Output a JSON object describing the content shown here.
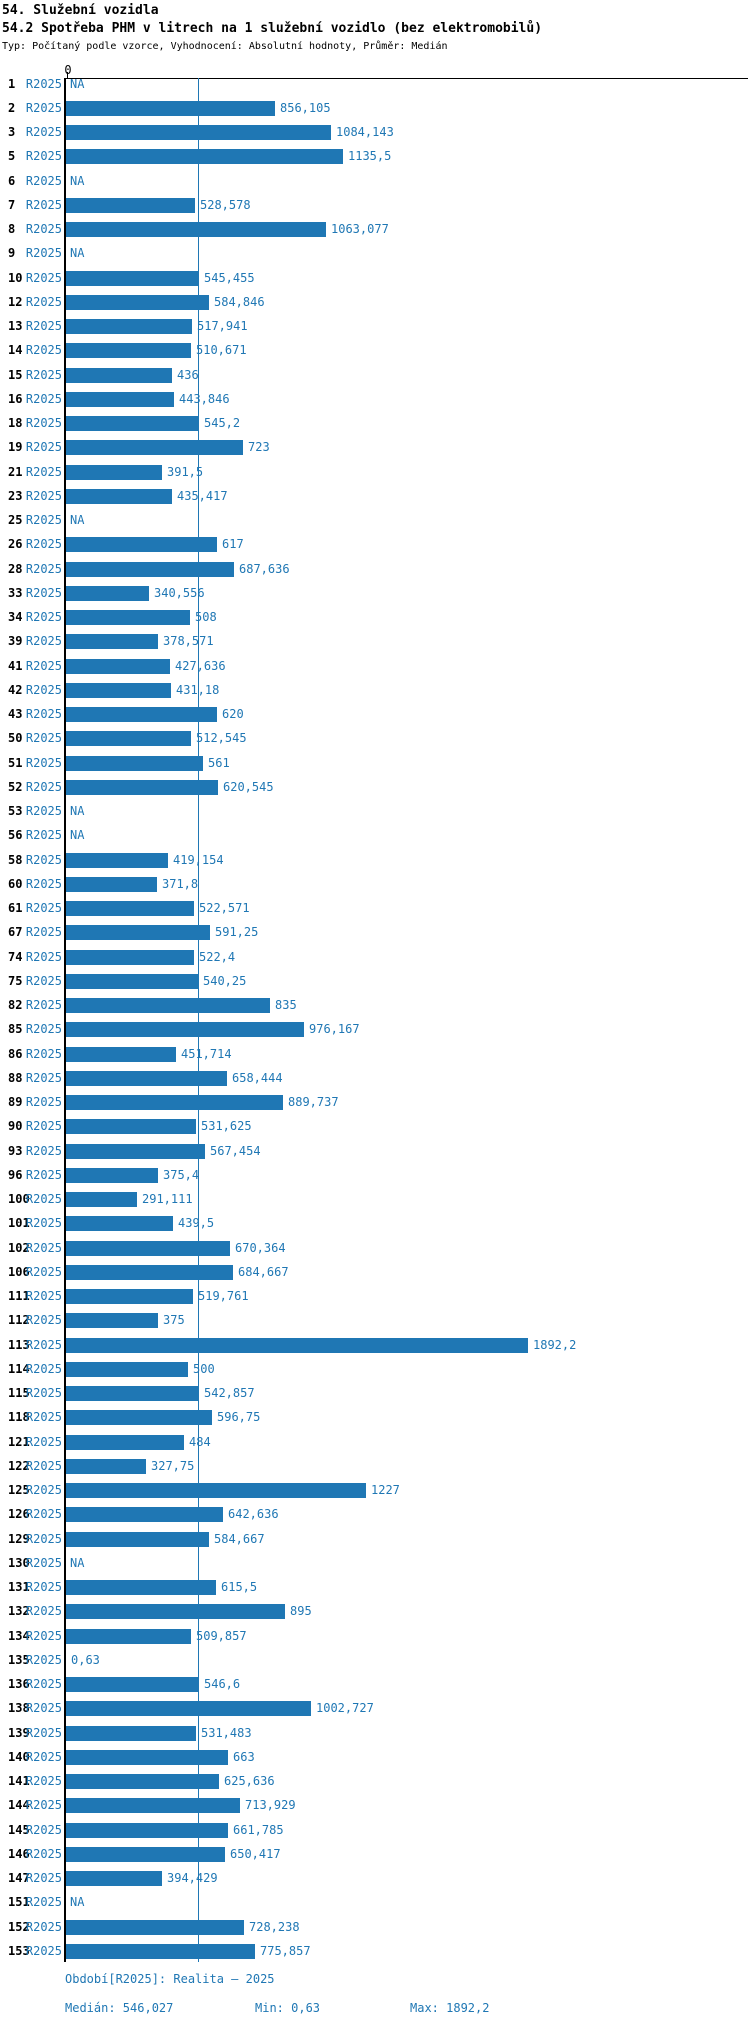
{
  "header": {
    "title": "54. Služební vozidla",
    "subtitle": "54.2 Spotřeba PHM v litrech na 1 služební vozidlo (bez elektromobilů)",
    "meta": "Typ: Počítaný podle vzorce, Vyhodnocení: Absolutní hodnoty, Průměr: Medián"
  },
  "colors": {
    "accent": "#1f77b4",
    "axis": "#000000"
  },
  "chart_data": {
    "type": "bar",
    "orientation": "horizontal",
    "series_label": "R2025",
    "value_axis": {
      "zero_label": "0",
      "min": 0,
      "max_bar_value": 1892.2
    },
    "median_value": 546.027,
    "na_text": "NA",
    "rows": [
      {
        "num": "1",
        "value": null,
        "label": "NA"
      },
      {
        "num": "2",
        "value": 856.105,
        "label": "856,105"
      },
      {
        "num": "3",
        "value": 1084.143,
        "label": "1084,143"
      },
      {
        "num": "5",
        "value": 1135.5,
        "label": "1135,5"
      },
      {
        "num": "6",
        "value": null,
        "label": "NA"
      },
      {
        "num": "7",
        "value": 528.578,
        "label": "528,578"
      },
      {
        "num": "8",
        "value": 1063.077,
        "label": "1063,077"
      },
      {
        "num": "9",
        "value": null,
        "label": "NA"
      },
      {
        "num": "10",
        "value": 545.455,
        "label": "545,455"
      },
      {
        "num": "12",
        "value": 584.846,
        "label": "584,846"
      },
      {
        "num": "13",
        "value": 517.941,
        "label": "517,941"
      },
      {
        "num": "14",
        "value": 510.671,
        "label": "510,671"
      },
      {
        "num": "15",
        "value": 436,
        "label": "436"
      },
      {
        "num": "16",
        "value": 443.846,
        "label": "443,846"
      },
      {
        "num": "18",
        "value": 545.2,
        "label": "545,2"
      },
      {
        "num": "19",
        "value": 723,
        "label": "723"
      },
      {
        "num": "21",
        "value": 391.5,
        "label": "391,5"
      },
      {
        "num": "23",
        "value": 435.417,
        "label": "435,417"
      },
      {
        "num": "25",
        "value": null,
        "label": "NA"
      },
      {
        "num": "26",
        "value": 617,
        "label": "617"
      },
      {
        "num": "28",
        "value": 687.636,
        "label": "687,636"
      },
      {
        "num": "33",
        "value": 340.556,
        "label": "340,556"
      },
      {
        "num": "34",
        "value": 508,
        "label": "508"
      },
      {
        "num": "39",
        "value": 378.571,
        "label": "378,571"
      },
      {
        "num": "41",
        "value": 427.636,
        "label": "427,636"
      },
      {
        "num": "42",
        "value": 431.18,
        "label": "431,18"
      },
      {
        "num": "43",
        "value": 620,
        "label": "620"
      },
      {
        "num": "50",
        "value": 512.545,
        "label": "512,545"
      },
      {
        "num": "51",
        "value": 561,
        "label": "561"
      },
      {
        "num": "52",
        "value": 620.545,
        "label": "620,545"
      },
      {
        "num": "53",
        "value": null,
        "label": "NA"
      },
      {
        "num": "56",
        "value": null,
        "label": "NA"
      },
      {
        "num": "58",
        "value": 419.154,
        "label": "419,154"
      },
      {
        "num": "60",
        "value": 371.8,
        "label": "371,8"
      },
      {
        "num": "61",
        "value": 522.571,
        "label": "522,571"
      },
      {
        "num": "67",
        "value": 591.25,
        "label": "591,25"
      },
      {
        "num": "74",
        "value": 522.4,
        "label": "522,4"
      },
      {
        "num": "75",
        "value": 540.25,
        "label": "540,25"
      },
      {
        "num": "82",
        "value": 835,
        "label": "835"
      },
      {
        "num": "85",
        "value": 976.167,
        "label": "976,167"
      },
      {
        "num": "86",
        "value": 451.714,
        "label": "451,714"
      },
      {
        "num": "88",
        "value": 658.444,
        "label": "658,444"
      },
      {
        "num": "89",
        "value": 889.737,
        "label": "889,737"
      },
      {
        "num": "90",
        "value": 531.625,
        "label": "531,625"
      },
      {
        "num": "93",
        "value": 567.454,
        "label": "567,454"
      },
      {
        "num": "96",
        "value": 375.4,
        "label": "375,4"
      },
      {
        "num": "100",
        "value": 291.111,
        "label": "291,111"
      },
      {
        "num": "101",
        "value": 439.5,
        "label": "439,5"
      },
      {
        "num": "102",
        "value": 670.364,
        "label": "670,364"
      },
      {
        "num": "106",
        "value": 684.667,
        "label": "684,667"
      },
      {
        "num": "111",
        "value": 519.761,
        "label": "519,761"
      },
      {
        "num": "112",
        "value": 375,
        "label": "375"
      },
      {
        "num": "113",
        "value": 1892.2,
        "label": "1892,2"
      },
      {
        "num": "114",
        "value": 500,
        "label": "500"
      },
      {
        "num": "115",
        "value": 542.857,
        "label": "542,857"
      },
      {
        "num": "118",
        "value": 596.75,
        "label": "596,75"
      },
      {
        "num": "121",
        "value": 484,
        "label": "484"
      },
      {
        "num": "122",
        "value": 327.75,
        "label": "327,75"
      },
      {
        "num": "125",
        "value": 1227,
        "label": "1227"
      },
      {
        "num": "126",
        "value": 642.636,
        "label": "642,636"
      },
      {
        "num": "129",
        "value": 584.667,
        "label": "584,667"
      },
      {
        "num": "130",
        "value": null,
        "label": "NA"
      },
      {
        "num": "131",
        "value": 615.5,
        "label": "615,5"
      },
      {
        "num": "132",
        "value": 895,
        "label": "895"
      },
      {
        "num": "134",
        "value": 509.857,
        "label": "509,857"
      },
      {
        "num": "135",
        "value": 0.63,
        "label": "0,63"
      },
      {
        "num": "136",
        "value": 546.6,
        "label": "546,6"
      },
      {
        "num": "138",
        "value": 1002.727,
        "label": "1002,727"
      },
      {
        "num": "139",
        "value": 531.483,
        "label": "531,483"
      },
      {
        "num": "140",
        "value": 663,
        "label": "663"
      },
      {
        "num": "141",
        "value": 625.636,
        "label": "625,636"
      },
      {
        "num": "144",
        "value": 713.929,
        "label": "713,929"
      },
      {
        "num": "145",
        "value": 661.785,
        "label": "661,785"
      },
      {
        "num": "146",
        "value": 650.417,
        "label": "650,417"
      },
      {
        "num": "147",
        "value": 394.429,
        "label": "394,429"
      },
      {
        "num": "151",
        "value": null,
        "label": "NA"
      },
      {
        "num": "152",
        "value": 728.238,
        "label": "728,238"
      },
      {
        "num": "153",
        "value": 775.857,
        "label": "775,857"
      }
    ]
  },
  "footer": {
    "period": "Období[R2025]: Realita – 2025",
    "median": "Medián: 546,027",
    "min": "Min: 0,63",
    "max": "Max: 1892,2"
  }
}
